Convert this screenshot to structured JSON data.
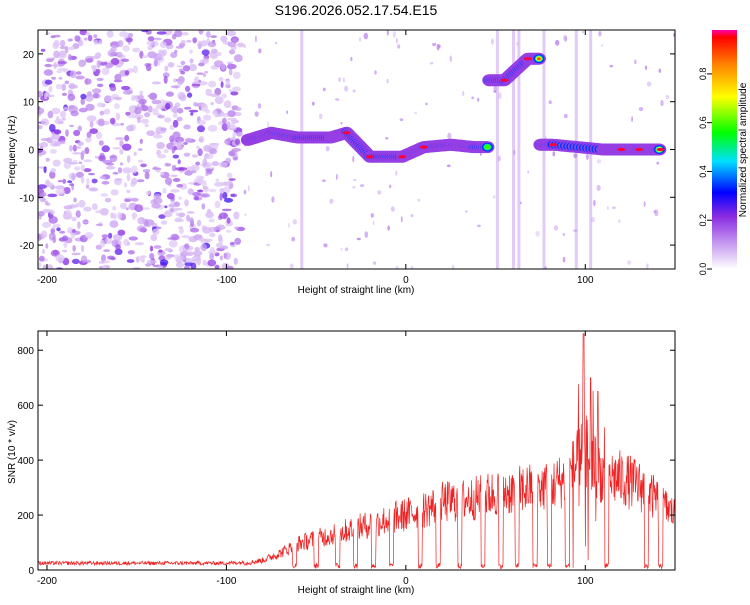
{
  "chart_data": [
    {
      "type": "heatmap",
      "title": "S196.2026.052.17.54.E15",
      "xlabel": "Height of straight line (km)",
      "ylabel": "Frequency (Hz)",
      "xlim": [
        -205,
        150
      ],
      "ylim": [
        -25,
        25
      ],
      "xticks": [
        -200,
        -100,
        0,
        100
      ],
      "yticks": [
        20,
        10,
        0,
        -10,
        -20
      ],
      "colorbar": {
        "label": "Normalized spectral amplitude",
        "range": [
          0,
          0.98
        ],
        "ticks": [
          0,
          0.2,
          0.4,
          0.6,
          0.8
        ]
      },
      "colors": {
        "low": "#8a2be2",
        "mid": "#00ff00",
        "high": "#ff0000"
      },
      "features": [
        {
          "name": "noise region",
          "x_range": [
            -205,
            -92
          ],
          "freq_range": [
            -25,
            25
          ],
          "amplitude": 0.15
        },
        {
          "name": "main band",
          "points": [
            {
              "x": -88,
              "f": 2,
              "a": 0.5
            },
            {
              "x": -75,
              "f": 3.5,
              "a": 0.6
            },
            {
              "x": -60,
              "f": 2.5,
              "a": 0.7
            },
            {
              "x": -42,
              "f": 2.5,
              "a": 0.6
            },
            {
              "x": -33,
              "f": 3.5,
              "a": 0.8
            },
            {
              "x": -20,
              "f": -1.5,
              "a": 0.8
            },
            {
              "x": -2,
              "f": -1.5,
              "a": 0.8
            },
            {
              "x": 10,
              "f": 0.5,
              "a": 0.8
            },
            {
              "x": 25,
              "f": 1,
              "a": 0.6
            },
            {
              "x": 38,
              "f": 0.5,
              "a": 0.6
            },
            {
              "x": 55,
              "f": 14.5,
              "a": 0.9
            },
            {
              "x": 68,
              "f": 19,
              "a": 0.9
            },
            {
              "x": 82,
              "f": 1,
              "a": 0.8
            },
            {
              "x": 110,
              "f": 0,
              "a": 0.7
            },
            {
              "x": 120,
              "f": 0,
              "a": 0.9
            },
            {
              "x": 130,
              "f": 0,
              "a": 0.9
            },
            {
              "x": 142,
              "f": 0,
              "a": 0.9
            }
          ]
        }
      ]
    },
    {
      "type": "line",
      "xlabel": "Height of straight line (km)",
      "ylabel": "SNR (10 * v/v)",
      "xlim": [
        -205,
        150
      ],
      "ylim": [
        0,
        870
      ],
      "xticks": [
        -200,
        -100,
        0,
        100
      ],
      "yticks": [
        0,
        200,
        400,
        600,
        800
      ],
      "color": "#ee2222",
      "series": [
        {
          "name": "SNR",
          "points": [
            [
              -205,
              25
            ],
            [
              -100,
              25
            ],
            [
              -90,
              28
            ],
            [
              -80,
              40
            ],
            [
              -70,
              70
            ],
            [
              -60,
              110
            ],
            [
              -50,
              130
            ],
            [
              -40,
              150
            ],
            [
              -30,
              170
            ],
            [
              -20,
              190
            ],
            [
              -10,
              210
            ],
            [
              0,
              230
            ],
            [
              10,
              250
            ],
            [
              20,
              280
            ],
            [
              30,
              290
            ],
            [
              40,
              300
            ],
            [
              50,
              320
            ],
            [
              60,
              330
            ],
            [
              70,
              340
            ],
            [
              80,
              350
            ],
            [
              90,
              380
            ],
            [
              100,
              500
            ],
            [
              110,
              390
            ],
            [
              120,
              380
            ],
            [
              130,
              350
            ],
            [
              140,
              290
            ],
            [
              150,
              230
            ]
          ]
        }
      ],
      "spikes": [
        [
          99,
          860
        ],
        [
          103,
          700
        ],
        [
          107,
          650
        ]
      ]
    }
  ]
}
